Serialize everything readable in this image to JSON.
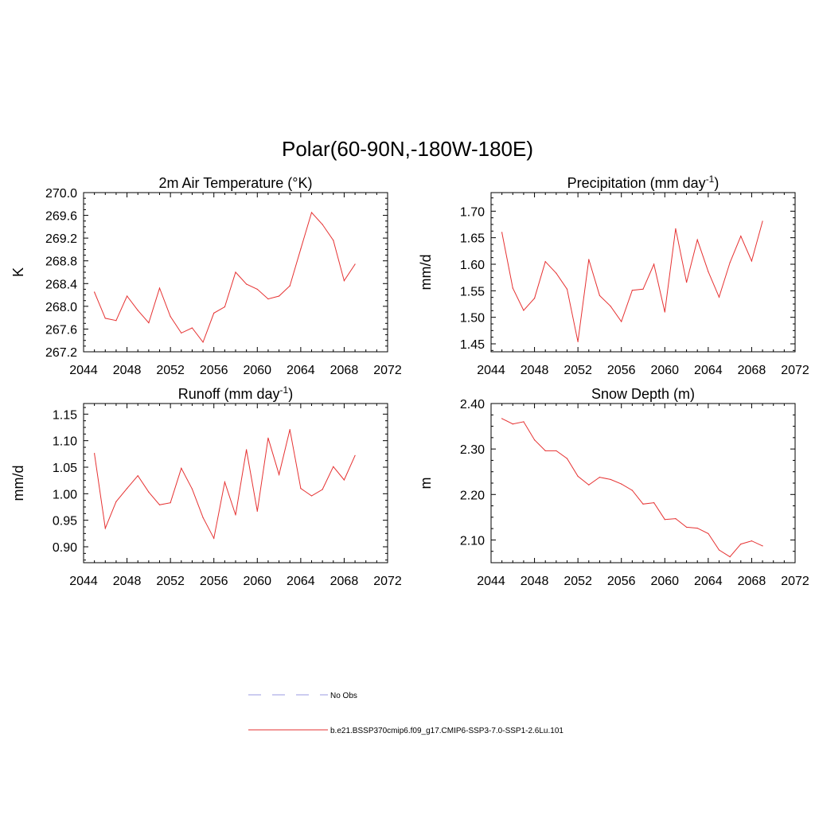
{
  "figure_title": "Polar(60-90N,-180W-180E)",
  "legend": [
    {
      "label": "No Obs",
      "color": "#9a9ae0",
      "style": "dashed"
    },
    {
      "label": "b.e21.BSSP370cmip6.f09_g17.CMIP6-SSP3-7.0-SSP1-2.6Lu.101",
      "color": "#e63232",
      "style": "solid"
    }
  ],
  "chart_data": [
    {
      "type": "line",
      "title": "2m Air Temperature (°K)",
      "ylabel": "K",
      "xlim": [
        2044,
        2072
      ],
      "ylim": [
        267.2,
        270.0
      ],
      "xticks": [
        "2044",
        "2048",
        "2052",
        "2056",
        "2060",
        "2064",
        "2068",
        "2072"
      ],
      "yticks": [
        "267.2",
        "267.6",
        "268.0",
        "268.4",
        "268.8",
        "269.2",
        "269.6",
        "270.0"
      ],
      "series": [
        {
          "color": "#e63232",
          "x": [
            2045,
            2046,
            2047,
            2048,
            2049,
            2050,
            2051,
            2052,
            2053,
            2054,
            2055,
            2056,
            2057,
            2058,
            2059,
            2060,
            2061,
            2062,
            2063,
            2064,
            2065,
            2066,
            2067,
            2068,
            2069
          ],
          "values": [
            268.25,
            267.79,
            267.75,
            268.18,
            267.93,
            267.71,
            268.32,
            267.82,
            267.53,
            267.62,
            267.37,
            267.88,
            267.99,
            268.6,
            268.39,
            268.3,
            268.13,
            268.18,
            268.36,
            269.01,
            269.65,
            269.44,
            269.16,
            268.45,
            268.74
          ]
        }
      ]
    },
    {
      "type": "line",
      "title": "Precipitation (mm day-1)",
      "ylabel": "mm/d",
      "xlim": [
        2044,
        2072
      ],
      "ylim": [
        1.435,
        1.735
      ],
      "xticks": [
        "2044",
        "2048",
        "2052",
        "2056",
        "2060",
        "2064",
        "2068",
        "2072"
      ],
      "yticks": [
        "1.45",
        "1.50",
        "1.55",
        "1.60",
        "1.65",
        "1.70"
      ],
      "series": [
        {
          "color": "#e63232",
          "x": [
            2045,
            2046,
            2047,
            2048,
            2049,
            2050,
            2051,
            2052,
            2053,
            2054,
            2055,
            2056,
            2057,
            2058,
            2059,
            2060,
            2061,
            2062,
            2063,
            2064,
            2065,
            2066,
            2067,
            2068,
            2069
          ],
          "values": [
            1.66,
            1.555,
            1.513,
            1.536,
            1.605,
            1.583,
            1.553,
            1.454,
            1.609,
            1.541,
            1.521,
            1.492,
            1.551,
            1.553,
            1.6,
            1.51,
            1.667,
            1.566,
            1.646,
            1.586,
            1.538,
            1.603,
            1.653,
            1.606,
            1.681
          ]
        }
      ]
    },
    {
      "type": "line",
      "title": "Runoff (mm day-1)",
      "ylabel": "mm/d",
      "xlim": [
        2044,
        2072
      ],
      "ylim": [
        0.87,
        1.17
      ],
      "xticks": [
        "2044",
        "2048",
        "2052",
        "2056",
        "2060",
        "2064",
        "2068",
        "2072"
      ],
      "yticks": [
        "0.90",
        "0.95",
        "1.00",
        "1.05",
        "1.10",
        "1.15"
      ],
      "series": [
        {
          "color": "#e63232",
          "x": [
            2045,
            2046,
            2047,
            2048,
            2049,
            2050,
            2051,
            2052,
            2053,
            2054,
            2055,
            2056,
            2057,
            2058,
            2059,
            2060,
            2061,
            2062,
            2063,
            2064,
            2065,
            2066,
            2067,
            2068,
            2069
          ],
          "values": [
            1.076,
            0.935,
            0.985,
            1.01,
            1.034,
            1.003,
            0.979,
            0.983,
            1.048,
            1.009,
            0.955,
            0.916,
            1.022,
            0.96,
            1.083,
            0.967,
            1.105,
            1.036,
            1.121,
            1.01,
            0.996,
            1.008,
            1.051,
            1.026,
            1.072
          ]
        }
      ]
    },
    {
      "type": "line",
      "title": "Snow Depth (m)",
      "ylabel": "m",
      "xlim": [
        2044,
        2072
      ],
      "ylim": [
        2.05,
        2.4
      ],
      "xticks": [
        "2044",
        "2048",
        "2052",
        "2056",
        "2060",
        "2064",
        "2068",
        "2072"
      ],
      "yticks": [
        "2.10",
        "2.20",
        "2.30",
        "2.40"
      ],
      "series": [
        {
          "color": "#e63232",
          "x": [
            2045,
            2046,
            2047,
            2048,
            2049,
            2050,
            2051,
            2052,
            2053,
            2054,
            2055,
            2056,
            2057,
            2058,
            2059,
            2060,
            2061,
            2062,
            2063,
            2064,
            2065,
            2066,
            2067,
            2068,
            2069
          ],
          "values": [
            2.367,
            2.355,
            2.36,
            2.32,
            2.296,
            2.296,
            2.279,
            2.24,
            2.221,
            2.238,
            2.233,
            2.223,
            2.209,
            2.179,
            2.182,
            2.145,
            2.147,
            2.128,
            2.126,
            2.114,
            2.078,
            2.063,
            2.091,
            2.098,
            2.087
          ]
        }
      ]
    }
  ]
}
